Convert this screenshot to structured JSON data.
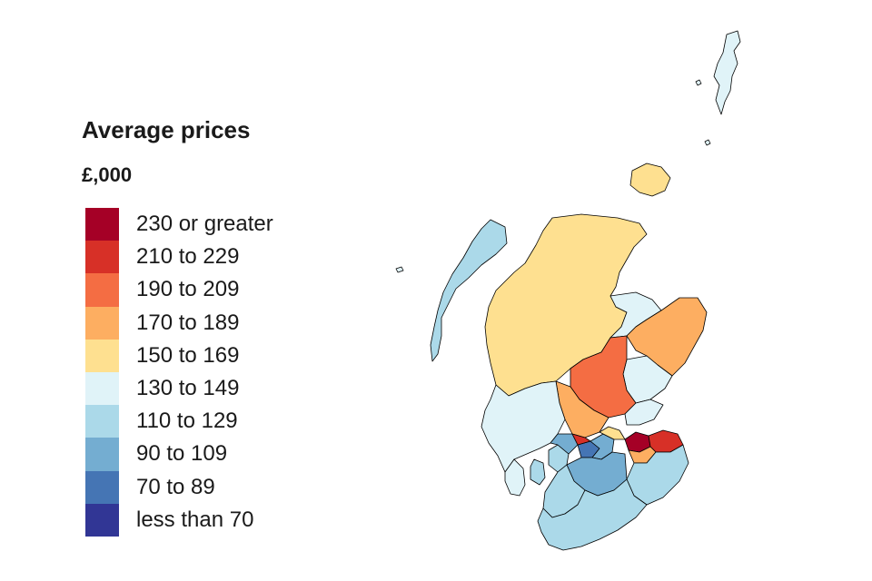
{
  "legend": {
    "title": "Average prices",
    "unit": "£,000",
    "items": [
      {
        "label": "230 or greater",
        "color": "#a50026"
      },
      {
        "label": "210 to 229",
        "color": "#d73027"
      },
      {
        "label": "190 to 209",
        "color": "#f46d43"
      },
      {
        "label": "170 to 189",
        "color": "#fdae61"
      },
      {
        "label": "150 to 169",
        "color": "#fee090"
      },
      {
        "label": "130 to 149",
        "color": "#e0f3f8"
      },
      {
        "label": "110 to 129",
        "color": "#abd9e9"
      },
      {
        "label": "90 to 109",
        "color": "#74add1"
      },
      {
        "label": "70 to 89",
        "color": "#4575b4"
      },
      {
        "label": "less than 70",
        "color": "#313695"
      }
    ]
  },
  "map": {
    "type": "choropleth",
    "regions": [
      {
        "band": "130 to 149"
      },
      {
        "band": "110 to 129"
      },
      {
        "band": "150 to 169"
      },
      {
        "band": "150 to 169"
      },
      {
        "band": "130 to 149"
      },
      {
        "band": "170 to 189"
      },
      {
        "band": "130 to 149"
      },
      {
        "band": "190 to 209"
      },
      {
        "band": "170 to 189"
      },
      {
        "band": "130 to 149"
      },
      {
        "band": "130 to 149"
      },
      {
        "band": "130 to 149"
      },
      {
        "band": "110 to 129"
      },
      {
        "band": "110 to 129"
      },
      {
        "band": "90 to 109"
      },
      {
        "band": "70 to 89"
      },
      {
        "band": "90 to 109"
      },
      {
        "band": "210 to 229"
      },
      {
        "band": "150 to 169"
      },
      {
        "band": "230 or greater"
      },
      {
        "band": "210 to 229"
      },
      {
        "band": "170 to 189"
      },
      {
        "band": "110 to 129"
      },
      {
        "band": "90 to 109"
      },
      {
        "band": "110 to 129"
      },
      {
        "band": "110 to 129"
      }
    ]
  }
}
